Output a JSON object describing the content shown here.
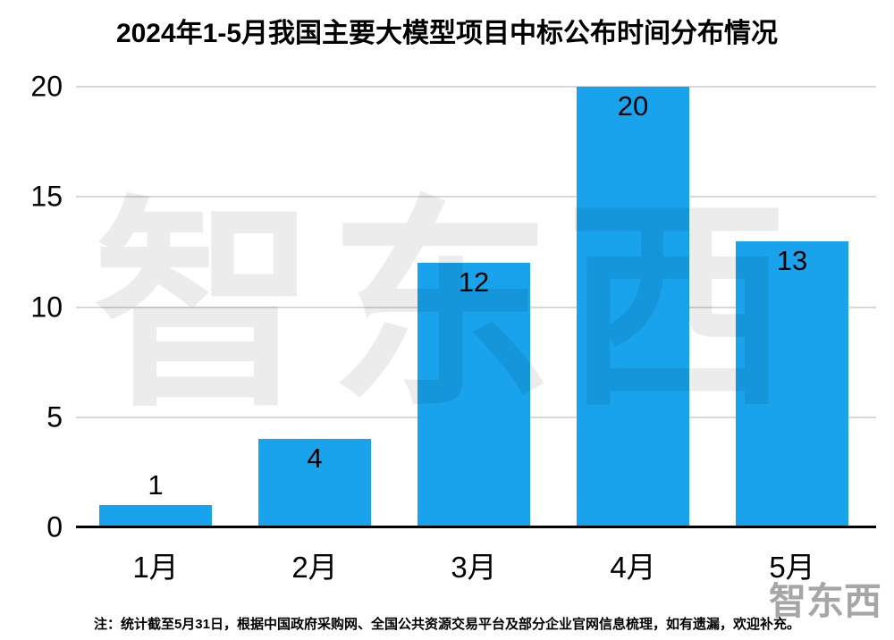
{
  "title": "2024年1-5月我国主要大模型项目中标公布时间分布情况",
  "footer_note": "注：统计截至5月31日，根据中国政府采购网、全国公共资源交易平台及部分企业官网信息梳理，如有遗漏，欢迎补充。",
  "watermark": {
    "text": "智东西",
    "corner_text": "智东西"
  },
  "colors": {
    "bar": "#18a3ec",
    "grid": "#d8d8d8",
    "axis": "#000000",
    "label": "#000000"
  },
  "chart_data": {
    "type": "bar",
    "title": "2024年1-5月我国主要大模型项目中标公布时间分布情况",
    "categories": [
      "1月",
      "2月",
      "3月",
      "4月",
      "5月"
    ],
    "values": [
      1,
      4,
      12,
      20,
      13
    ],
    "xlabel": "",
    "ylabel": "",
    "ylim": [
      0,
      20
    ],
    "yticks": [
      0,
      5,
      10,
      15,
      20
    ],
    "grid": true,
    "legend": false,
    "bar_color": "#18a3ec"
  }
}
